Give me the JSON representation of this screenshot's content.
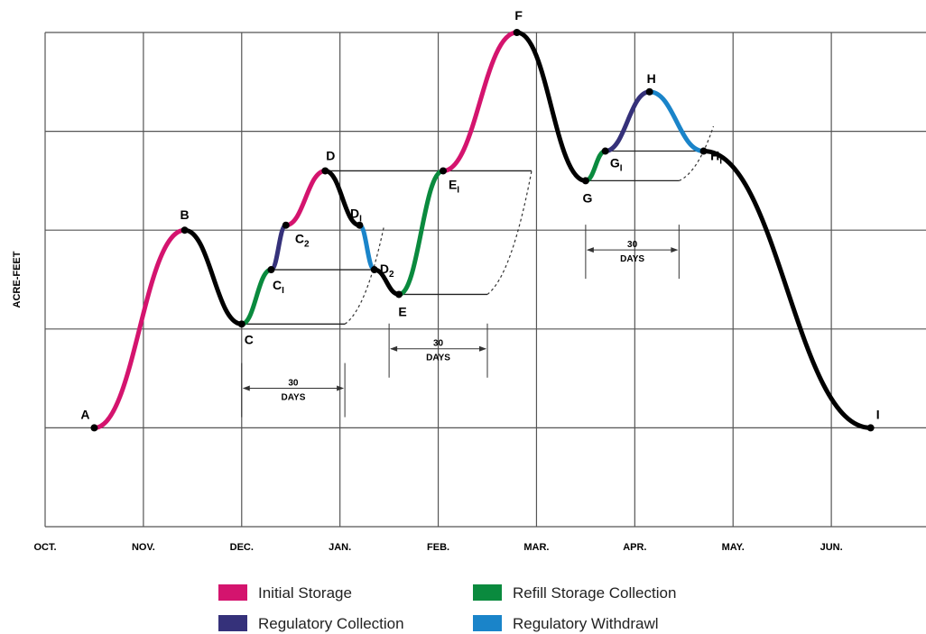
{
  "chart_data": {
    "type": "line",
    "title": "",
    "xlabel": "",
    "ylabel": "ACRE-FEET",
    "x_tick_labels": [
      "OCT.",
      "NOV.",
      "DEC.",
      "JAN.",
      "FEB.",
      "MAR.",
      "APR.",
      "MAY.",
      "JUN."
    ],
    "xlim": [
      0,
      9
    ],
    "ylim": [
      0,
      5
    ],
    "grid": true,
    "colors": {
      "initial_storage": "#d4146e",
      "regulatory_collection": "#35317a",
      "refill_storage_collection": "#0a8a3e",
      "regulatory_withdrawal": "#1a84c9",
      "other": "#000000"
    },
    "legend": {
      "placement": "bottom",
      "entries": [
        {
          "label": "Initial Storage",
          "color_key": "initial_storage"
        },
        {
          "label": "Refill Storage Collection",
          "color_key": "refill_storage_collection"
        },
        {
          "label": "Regulatory Collection",
          "color_key": "regulatory_collection"
        },
        {
          "label": "Regulatory Withdrawl",
          "color_key": "regulatory_withdrawal"
        }
      ]
    },
    "points": [
      {
        "id": "A",
        "label": "A",
        "sub": "",
        "x": 0.5,
        "y": 1.0
      },
      {
        "id": "B",
        "label": "B",
        "sub": "",
        "x": 1.42,
        "y": 3.0
      },
      {
        "id": "C",
        "label": "C",
        "sub": "",
        "x": 2.0,
        "y": 2.05
      },
      {
        "id": "C1",
        "label": "C",
        "sub": "I",
        "x": 2.3,
        "y": 2.6
      },
      {
        "id": "C2",
        "label": "C",
        "sub": "2",
        "x": 2.45,
        "y": 3.05
      },
      {
        "id": "D",
        "label": "D",
        "sub": "",
        "x": 2.85,
        "y": 3.6
      },
      {
        "id": "D1",
        "label": "D",
        "sub": "I",
        "x": 3.2,
        "y": 3.05
      },
      {
        "id": "D2",
        "label": "D",
        "sub": "2",
        "x": 3.35,
        "y": 2.6
      },
      {
        "id": "E",
        "label": "E",
        "sub": "",
        "x": 3.6,
        "y": 2.35
      },
      {
        "id": "E1",
        "label": "E",
        "sub": "I",
        "x": 4.05,
        "y": 3.6
      },
      {
        "id": "F",
        "label": "F",
        "sub": "",
        "x": 4.8,
        "y": 5.0
      },
      {
        "id": "G",
        "label": "G",
        "sub": "",
        "x": 5.5,
        "y": 3.5
      },
      {
        "id": "G1",
        "label": "G",
        "sub": "I",
        "x": 5.7,
        "y": 3.8
      },
      {
        "id": "H",
        "label": "H",
        "sub": "",
        "x": 6.15,
        "y": 4.4
      },
      {
        "id": "H1",
        "label": "H",
        "sub": "I",
        "x": 6.7,
        "y": 3.8
      },
      {
        "id": "I",
        "label": "I",
        "sub": "",
        "x": 8.4,
        "y": 1.0
      }
    ],
    "segments": [
      {
        "from": "A",
        "to": "B",
        "category": "initial_storage"
      },
      {
        "from": "B",
        "to": "C",
        "category": "other"
      },
      {
        "from": "C",
        "to": "C1",
        "category": "refill_storage_collection"
      },
      {
        "from": "C1",
        "to": "C2",
        "category": "regulatory_collection"
      },
      {
        "from": "C2",
        "to": "D",
        "category": "initial_storage"
      },
      {
        "from": "D",
        "to": "D1",
        "category": "other"
      },
      {
        "from": "D1",
        "to": "D2",
        "category": "regulatory_withdrawal"
      },
      {
        "from": "D2",
        "to": "E",
        "category": "other"
      },
      {
        "from": "E",
        "to": "E1",
        "category": "refill_storage_collection"
      },
      {
        "from": "E1",
        "to": "F",
        "category": "initial_storage"
      },
      {
        "from": "F",
        "to": "G",
        "category": "other"
      },
      {
        "from": "G",
        "to": "G1",
        "category": "refill_storage_collection"
      },
      {
        "from": "G1",
        "to": "H",
        "category": "regulatory_collection"
      },
      {
        "from": "H",
        "to": "H1",
        "category": "regulatory_withdrawal"
      },
      {
        "from": "H1",
        "to": "I",
        "category": "other"
      }
    ],
    "reference_lines": [
      {
        "y": 2.05,
        "x0": 2.0,
        "x1": 3.05
      },
      {
        "y": 2.6,
        "x0": 2.3,
        "x1": 3.35
      },
      {
        "y": 2.35,
        "x0": 3.6,
        "x1": 4.5
      },
      {
        "y": 3.6,
        "x0": 2.85,
        "x1": 4.95
      },
      {
        "y": 3.5,
        "x0": 5.5,
        "x1": 6.45
      },
      {
        "y": 3.8,
        "x0": 5.7,
        "x1": 6.7
      }
    ],
    "dashed_curves": [
      {
        "x0": 3.05,
        "y0": 2.05,
        "x1": 3.45,
        "y1": 3.05
      },
      {
        "x0": 4.5,
        "y0": 2.35,
        "x1": 4.95,
        "y1": 3.6
      },
      {
        "x0": 6.45,
        "y0": 3.5,
        "x1": 6.8,
        "y1": 4.05
      }
    ],
    "intervals": [
      {
        "x0": 2.0,
        "x1": 3.05,
        "y": 1.4,
        "label_top": "30",
        "label_bottom": "DAYS"
      },
      {
        "x0": 3.5,
        "x1": 4.5,
        "y": 1.8,
        "label_top": "30",
        "label_bottom": "DAYS"
      },
      {
        "x0": 5.5,
        "x1": 6.45,
        "y": 2.8,
        "label_top": "30",
        "label_bottom": "DAYS"
      }
    ]
  }
}
